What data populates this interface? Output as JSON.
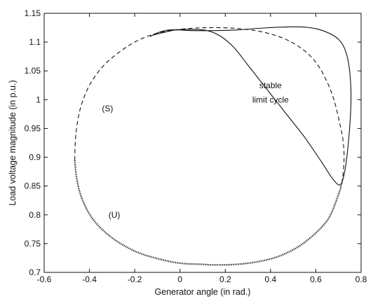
{
  "chart_data": {
    "type": "line",
    "title": "",
    "xlabel": "Generator angle (in rad.)",
    "ylabel": "Load voltage magnitude (in p.u.)",
    "xlim": [
      -0.6,
      0.8
    ],
    "ylim": [
      0.7,
      1.15
    ],
    "x_ticks": [
      -0.6,
      -0.4,
      -0.2,
      0,
      0.2,
      0.4,
      0.6,
      0.8
    ],
    "x_tick_labels": [
      "-0.6",
      "-0.4",
      "-0.2",
      "0",
      "0.2",
      "0.4",
      "0.6",
      "0.8"
    ],
    "y_ticks": [
      0.7,
      0.75,
      0.8,
      0.85,
      0.9,
      0.95,
      1,
      1.05,
      1.1,
      1.15
    ],
    "y_tick_labels": [
      "0.7",
      "0.75",
      "0.8",
      "0.85",
      "0.9",
      "0.95",
      "1",
      "1.05",
      "1.1",
      "1.15"
    ],
    "grid": false,
    "legend": "none",
    "series": [
      {
        "style": "dotted",
        "color": "#111111",
        "x": [
          0.715,
          0.7,
          0.65,
          0.55,
          0.45,
          0.35,
          0.25,
          0.15,
          0.1,
          0.0,
          -0.1,
          -0.2,
          -0.3,
          -0.38,
          -0.43,
          -0.455,
          -0.465
        ],
        "y": [
          0.855,
          0.835,
          0.79,
          0.752,
          0.73,
          0.719,
          0.714,
          0.713,
          0.714,
          0.716,
          0.724,
          0.737,
          0.76,
          0.79,
          0.825,
          0.86,
          0.895
        ]
      },
      {
        "style": "dashed",
        "color": "#111111",
        "x": [
          -0.465,
          -0.46,
          -0.44,
          -0.4,
          -0.34,
          -0.27,
          -0.2,
          -0.13,
          -0.06,
          0.02,
          0.12,
          0.24,
          0.36,
          0.46,
          0.54,
          0.6,
          0.645,
          0.68,
          0.705,
          0.72,
          0.725,
          0.72,
          0.715
        ],
        "y": [
          0.895,
          0.94,
          0.985,
          1.025,
          1.058,
          1.082,
          1.1,
          1.112,
          1.119,
          1.123,
          1.125,
          1.124,
          1.118,
          1.106,
          1.088,
          1.065,
          1.035,
          1.0,
          0.96,
          0.93,
          0.9,
          0.87,
          0.855
        ]
      },
      {
        "style": "solid",
        "color": "#111111",
        "x": [
          0.715,
          0.73,
          0.745,
          0.755,
          0.752,
          0.735,
          0.7,
          0.63,
          0.55,
          0.45,
          0.35,
          0.25,
          0.15,
          0.05,
          0.0,
          -0.05,
          -0.1,
          -0.13,
          -0.12,
          -0.08,
          -0.02,
          0.05,
          0.12,
          0.18,
          0.24,
          0.3,
          0.36,
          0.42,
          0.48,
          0.55,
          0.62,
          0.67,
          0.7,
          0.715
        ],
        "y": [
          0.855,
          0.88,
          0.93,
          0.99,
          1.04,
          1.08,
          1.105,
          1.12,
          1.126,
          1.126,
          1.124,
          1.121,
          1.12,
          1.12,
          1.121,
          1.121,
          1.116,
          1.11,
          1.112,
          1.116,
          1.121,
          1.122,
          1.12,
          1.11,
          1.09,
          1.06,
          1.03,
          1.0,
          0.97,
          0.935,
          0.895,
          0.865,
          0.852,
          0.855
        ]
      }
    ],
    "annotations": [
      {
        "text": "stable",
        "x": 0.4,
        "y": 1.02
      },
      {
        "text": "limit cycle",
        "x": 0.4,
        "y": 0.995
      },
      {
        "text": "(S)",
        "x": -0.32,
        "y": 0.98
      },
      {
        "text": "(U)",
        "x": -0.29,
        "y": 0.795
      }
    ]
  }
}
